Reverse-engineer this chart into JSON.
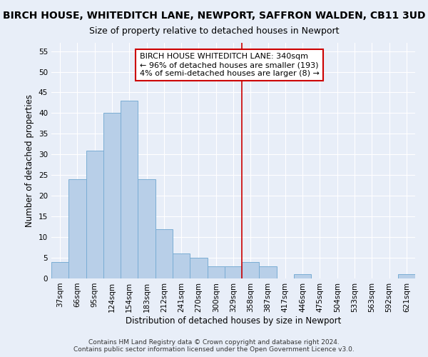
{
  "title": "BIRCH HOUSE, WHITEDITCH LANE, NEWPORT, SAFFRON WALDEN, CB11 3UD",
  "subtitle": "Size of property relative to detached houses in Newport",
  "xlabel": "Distribution of detached houses by size in Newport",
  "ylabel": "Number of detached properties",
  "categories": [
    "37sqm",
    "66sqm",
    "95sqm",
    "124sqm",
    "154sqm",
    "183sqm",
    "212sqm",
    "241sqm",
    "270sqm",
    "300sqm",
    "329sqm",
    "358sqm",
    "387sqm",
    "417sqm",
    "446sqm",
    "475sqm",
    "504sqm",
    "533sqm",
    "563sqm",
    "592sqm",
    "621sqm"
  ],
  "values": [
    4,
    24,
    31,
    40,
    43,
    24,
    12,
    6,
    5,
    3,
    3,
    4,
    3,
    0,
    1,
    0,
    0,
    0,
    0,
    0,
    1
  ],
  "bar_color": "#b8cfe8",
  "bar_edge_color": "#7aadd4",
  "bg_color": "#e8eef8",
  "grid_color": "#ffffff",
  "vline_x": 10.5,
  "vline_color": "#cc0000",
  "annotation_text": "BIRCH HOUSE WHITEDITCH LANE: 340sqm\n← 96% of detached houses are smaller (193)\n4% of semi-detached houses are larger (8) →",
  "annotation_box_color": "#ffffff",
  "annotation_box_edge": "#cc0000",
  "ylim": [
    0,
    57
  ],
  "yticks": [
    0,
    5,
    10,
    15,
    20,
    25,
    30,
    35,
    40,
    45,
    50,
    55
  ],
  "footer": "Contains HM Land Registry data © Crown copyright and database right 2024.\nContains public sector information licensed under the Open Government Licence v3.0.",
  "title_fontsize": 10,
  "subtitle_fontsize": 9,
  "axis_label_fontsize": 8.5,
  "tick_fontsize": 7.5,
  "annotation_fontsize": 8,
  "footer_fontsize": 6.5
}
